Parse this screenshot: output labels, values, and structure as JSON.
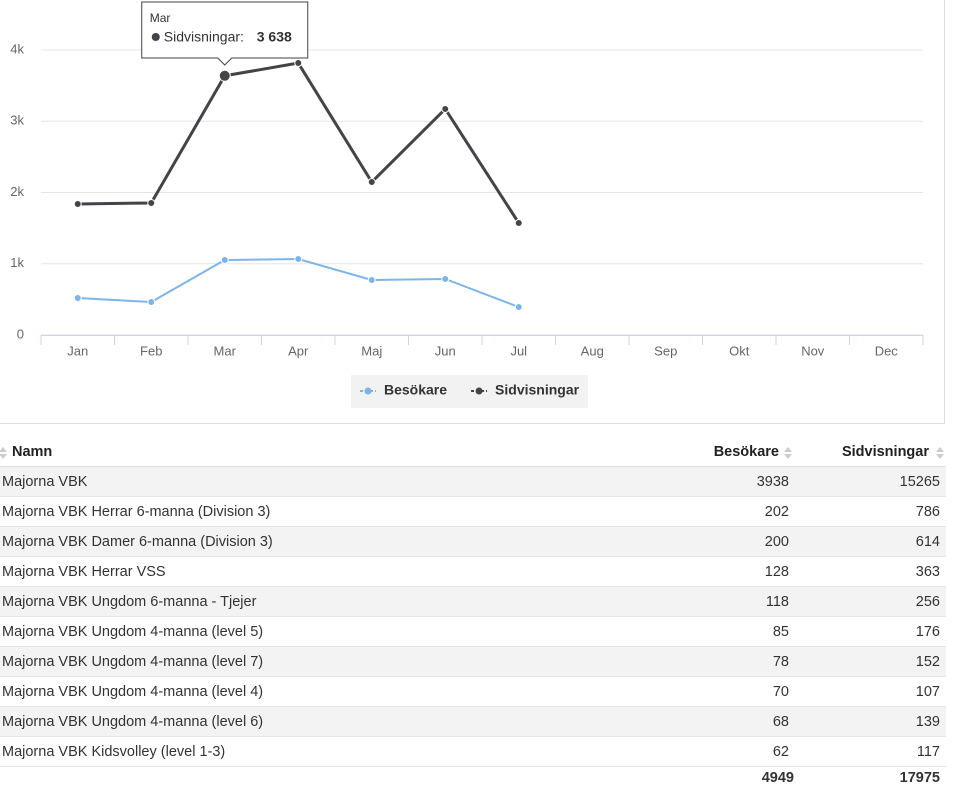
{
  "chart_data": {
    "type": "line",
    "categories": [
      "Jan",
      "Feb",
      "Mar",
      "Apr",
      "Maj",
      "Jun",
      "Jul",
      "Aug",
      "Sep",
      "Okt",
      "Nov",
      "Dec"
    ],
    "series": [
      {
        "name": "Besökare",
        "color": "#7cb5ec",
        "values": [
          519,
          463,
          1053,
          1067,
          772,
          786,
          393,
          null,
          null,
          null,
          null,
          null
        ]
      },
      {
        "name": "Sidvisningar",
        "color": "#434348",
        "values": [
          1839,
          1853,
          3638,
          3817,
          2147,
          3172,
          1572,
          null,
          null,
          null,
          null,
          null
        ],
        "value_labels": [
          null,
          null,
          "3 638",
          null,
          null,
          null,
          null,
          null,
          null,
          null,
          null,
          null
        ]
      }
    ],
    "ylim": [
      0,
      4000
    ],
    "yticks": [
      0,
      {
        "value": 1000,
        "label": "1k"
      },
      {
        "value": 2000,
        "label": "2k"
      },
      {
        "value": 3000,
        "label": "3k"
      },
      {
        "value": 4000,
        "label": "4k"
      }
    ],
    "grid": true,
    "legend": "bottom",
    "tooltip_label": "Sidvisningar:"
  },
  "table": {
    "columns": [
      "Namn",
      "Besökare",
      "Sidvisningar"
    ],
    "rows": [
      [
        "Majorna VBK",
        3938,
        15265
      ],
      [
        "Majorna VBK Herrar 6-manna (Division 3)",
        202,
        786
      ],
      [
        "Majorna VBK Damer 6-manna (Division 3)",
        200,
        614
      ],
      [
        "Majorna VBK Herrar VSS",
        128,
        363
      ],
      [
        "Majorna VBK Ungdom 6-manna - Tjejer",
        118,
        256
      ],
      [
        "Majorna VBK Ungdom 4-manna (level 5)",
        85,
        176
      ],
      [
        "Majorna VBK Ungdom 4-manna (level 7)",
        78,
        152
      ],
      [
        "Majorna VBK Ungdom 4-manna (level 4)",
        70,
        107
      ],
      [
        "Majorna VBK Ungdom 4-manna (level 6)",
        68,
        139
      ],
      [
        "Majorna VBK Kidsvolley (level 1-3)",
        62,
        117
      ]
    ],
    "totals": [
      4949,
      17975
    ]
  }
}
